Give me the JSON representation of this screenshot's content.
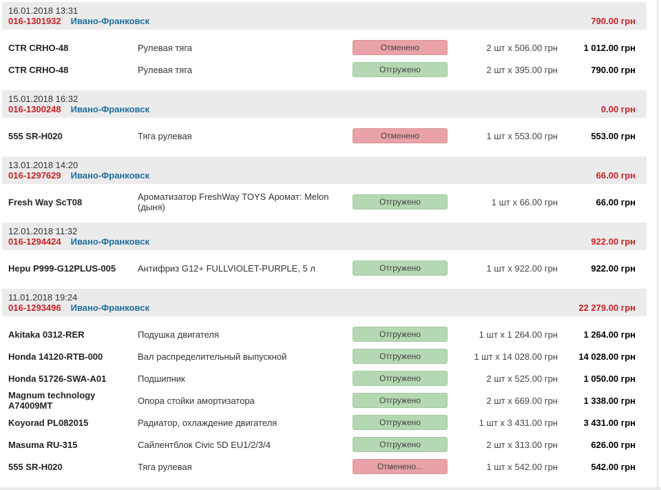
{
  "currency": "грн",
  "colors": {
    "group_header_bg": "#ebebeb",
    "order_number_red": "#cc2127",
    "city_link_blue": "#1e6f9f",
    "amount_red": "#cc2127",
    "badge_cancelled_bg": "#e9a2a7",
    "badge_shipped_bg": "#b4d8b2"
  },
  "statuses": {
    "cancelled_label": "Отменено",
    "shipped_label": "Отгружено"
  },
  "groups": [
    {
      "datetime": "16.01.2018 13:31",
      "order_number": "016-1301932",
      "city": "Ивано-Франковск",
      "total": "790.00 грн",
      "items": [
        {
          "part": "CTR CRHO-48",
          "description": "Рулевая тяга",
          "status": "Отменено",
          "status_type": "cancelled",
          "qty_price": "2 шт x 506.00 грн",
          "total": "1 012.00 грн"
        },
        {
          "part": "CTR CRHO-48",
          "description": "Рулевая тяга",
          "status": "Отгружено",
          "status_type": "shipped",
          "qty_price": "2 шт x 395.00 грн",
          "total": "790.00 грн"
        }
      ]
    },
    {
      "datetime": "15.01.2018 16:32",
      "order_number": "016-1300248",
      "city": "Ивано-Франковск",
      "total": "0.00 грн",
      "items": [
        {
          "part": "555 SR-H020",
          "description": "Тяга рулевая",
          "status": "Отменено",
          "status_type": "cancelled",
          "qty_price": "1 шт x 553.00 грн",
          "total": "553.00 грн"
        }
      ]
    },
    {
      "datetime": "13.01.2018 14:20",
      "order_number": "016-1297629",
      "city": "Ивано-Франковск",
      "total": "66.00 грн",
      "items": [
        {
          "part": "Fresh Way ScT08",
          "description": "Ароматизатор FreshWay TOYS Аромат: Melon (дыня)",
          "status": "Отгружено",
          "status_type": "shipped",
          "qty_price": "1 шт x 66.00 грн",
          "total": "66.00 грн"
        }
      ]
    },
    {
      "datetime": "12.01.2018 11:32",
      "order_number": "016-1294424",
      "city": "Ивано-Франковск",
      "total": "922.00 грн",
      "items": [
        {
          "part": "Hepu P999-G12PLUS-005",
          "description": "Антифриз G12+ FULLVIOLET-PURPLE, 5 л",
          "status": "Отгружено",
          "status_type": "shipped",
          "qty_price": "1 шт x 922.00 грн",
          "total": "922.00 грн"
        }
      ]
    },
    {
      "datetime": "11.01.2018 19:24",
      "order_number": "016-1293496",
      "city": "Ивано-Франковск",
      "total": "22 279.00 грн",
      "items": [
        {
          "part": "Akitaka 0312-RER",
          "description": "Подушка двигателя",
          "status": "Отгружено",
          "status_type": "shipped",
          "qty_price": "1 шт x 1 264.00 грн",
          "total": "1 264.00 грн"
        },
        {
          "part": "Honda 14120-RTB-000",
          "description": "Вал распределительный выпускной",
          "status": "Отгружено",
          "status_type": "shipped",
          "qty_price": "1 шт x 14 028.00 грн",
          "total": "14 028.00 грн"
        },
        {
          "part": "Honda 51726-SWA-A01",
          "description": "Подшипник",
          "status": "Отгружено",
          "status_type": "shipped",
          "qty_price": "2 шт x 525.00 грн",
          "total": "1 050.00 грн"
        },
        {
          "part": "Magnum technology A74009MT",
          "description": "Опора стойки амортизатора",
          "status": "Отгружено",
          "status_type": "shipped",
          "qty_price": "2 шт x 669.00 грн",
          "total": "1 338.00 грн"
        },
        {
          "part": "Koyorad PL082015",
          "description": "Радиатор, охлаждение двигателя",
          "status": "Отгружено",
          "status_type": "shipped",
          "qty_price": "1 шт x 3 431.00 грн",
          "total": "3 431.00 грн"
        },
        {
          "part": "Masuma RU-315",
          "description": "Сайлентблок Civic 5D EU1/2/3/4",
          "status": "Отгружено",
          "status_type": "shipped",
          "qty_price": "2 шт x 313.00 грн",
          "total": "626.00 грн"
        },
        {
          "part": "555 SR-H020",
          "description": "Тяга рулевая",
          "status": "Отменено...",
          "status_type": "cancelled",
          "qty_price": "1 шт x 542.00 грн",
          "total": "542.00 грн"
        }
      ]
    }
  ]
}
